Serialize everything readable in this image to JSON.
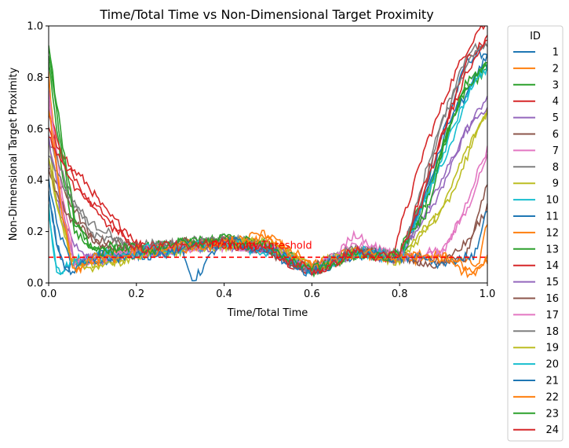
{
  "chart_data": {
    "type": "line",
    "title": "Time/Total Time vs Non-Dimensional Target Proximity",
    "xlabel": "Time/Total Time",
    "ylabel": "Non-Dimensional Target Proximity",
    "xlim": [
      0.0,
      1.0
    ],
    "ylim": [
      0.0,
      1.0
    ],
    "xticks": [
      "0.0",
      "0.2",
      "0.4",
      "0.6",
      "0.8",
      "1.0"
    ],
    "yticks": [
      "0.0",
      "0.2",
      "0.4",
      "0.6",
      "0.8",
      "1.0"
    ],
    "grid": false,
    "legend": {
      "title": "ID",
      "placement": "outside-right"
    },
    "threshold": {
      "y": 0.1,
      "label": "Proximity Threshold",
      "color": "#ff0000",
      "style": "dashed"
    },
    "series": [
      {
        "name": "1",
        "color": "#1f77b4",
        "x": [
          0,
          0.02,
          0.05,
          0.1,
          0.2,
          0.3,
          0.4,
          0.5,
          0.6,
          0.7,
          0.8,
          0.85,
          0.9,
          0.95,
          1.0
        ],
        "y": [
          0.4,
          0.2,
          0.08,
          0.1,
          0.12,
          0.14,
          0.16,
          0.13,
          0.05,
          0.12,
          0.1,
          0.3,
          0.6,
          0.85,
          0.9
        ]
      },
      {
        "name": "2",
        "color": "#ff7f0e",
        "x": [
          0,
          0.02,
          0.05,
          0.1,
          0.2,
          0.3,
          0.4,
          0.5,
          0.6,
          0.7,
          0.8,
          0.9,
          0.98,
          1.0
        ],
        "y": [
          0.8,
          0.4,
          0.1,
          0.08,
          0.12,
          0.14,
          0.15,
          0.17,
          0.06,
          0.12,
          0.1,
          0.1,
          0.06,
          0.25
        ]
      },
      {
        "name": "3",
        "color": "#2ca02c",
        "x": [
          0,
          0.03,
          0.06,
          0.1,
          0.2,
          0.3,
          0.4,
          0.5,
          0.6,
          0.7,
          0.8,
          0.85,
          0.9,
          0.95,
          1.0
        ],
        "y": [
          0.85,
          0.45,
          0.2,
          0.12,
          0.13,
          0.15,
          0.17,
          0.14,
          0.05,
          0.11,
          0.12,
          0.3,
          0.55,
          0.75,
          0.84
        ]
      },
      {
        "name": "4",
        "color": "#d62728",
        "x": [
          0,
          0.05,
          0.1,
          0.15,
          0.2,
          0.3,
          0.4,
          0.5,
          0.6,
          0.7,
          0.78,
          0.82,
          0.86,
          0.9,
          0.95,
          0.98,
          1.0
        ],
        "y": [
          0.65,
          0.45,
          0.35,
          0.25,
          0.15,
          0.14,
          0.16,
          0.13,
          0.04,
          0.12,
          0.1,
          0.3,
          0.55,
          0.7,
          0.9,
          1.0,
          1.0
        ]
      },
      {
        "name": "5",
        "color": "#9467bd",
        "x": [
          0,
          0.03,
          0.07,
          0.1,
          0.2,
          0.3,
          0.4,
          0.5,
          0.6,
          0.7,
          0.8,
          0.9,
          0.95,
          1.0
        ],
        "y": [
          0.5,
          0.25,
          0.1,
          0.09,
          0.12,
          0.13,
          0.15,
          0.14,
          0.05,
          0.12,
          0.1,
          0.4,
          0.6,
          0.72
        ]
      },
      {
        "name": "6",
        "color": "#8c564b",
        "x": [
          0,
          0.05,
          0.1,
          0.15,
          0.2,
          0.3,
          0.4,
          0.5,
          0.6,
          0.7,
          0.8,
          0.9,
          0.95,
          1.0
        ],
        "y": [
          0.45,
          0.3,
          0.18,
          0.15,
          0.13,
          0.15,
          0.16,
          0.13,
          0.05,
          0.12,
          0.1,
          0.08,
          0.1,
          0.38
        ]
      },
      {
        "name": "7",
        "color": "#e377c2",
        "x": [
          0,
          0.03,
          0.06,
          0.1,
          0.2,
          0.3,
          0.4,
          0.5,
          0.6,
          0.7,
          0.8,
          0.9,
          0.95,
          1.0
        ],
        "y": [
          0.75,
          0.35,
          0.08,
          0.1,
          0.12,
          0.14,
          0.15,
          0.14,
          0.05,
          0.16,
          0.1,
          0.12,
          0.3,
          0.52
        ]
      },
      {
        "name": "8",
        "color": "#7f7f7f",
        "x": [
          0,
          0.05,
          0.1,
          0.15,
          0.2,
          0.3,
          0.4,
          0.5,
          0.6,
          0.7,
          0.8,
          0.84,
          0.88,
          0.92,
          0.96,
          1.0
        ],
        "y": [
          0.55,
          0.35,
          0.22,
          0.18,
          0.14,
          0.15,
          0.17,
          0.14,
          0.05,
          0.13,
          0.1,
          0.3,
          0.55,
          0.75,
          0.9,
          0.93
        ]
      },
      {
        "name": "9",
        "color": "#bcbd22",
        "x": [
          0,
          0.02,
          0.05,
          0.1,
          0.2,
          0.3,
          0.4,
          0.5,
          0.6,
          0.7,
          0.8,
          0.9,
          0.95,
          1.0
        ],
        "y": [
          0.55,
          0.3,
          0.12,
          0.06,
          0.11,
          0.13,
          0.15,
          0.16,
          0.06,
          0.12,
          0.09,
          0.3,
          0.5,
          0.68
        ]
      },
      {
        "name": "10",
        "color": "#17becf",
        "x": [
          0,
          0.01,
          0.02,
          0.04,
          0.1,
          0.2,
          0.3,
          0.4,
          0.5,
          0.6,
          0.7,
          0.8,
          0.9,
          0.97,
          1.0
        ],
        "y": [
          0.3,
          0.15,
          0.03,
          0.08,
          0.1,
          0.12,
          0.14,
          0.15,
          0.13,
          0.05,
          0.12,
          0.1,
          0.5,
          0.8,
          0.85
        ]
      },
      {
        "name": "11",
        "color": "#1f77b4",
        "x": [
          0,
          0.02,
          0.04,
          0.1,
          0.2,
          0.3,
          0.33,
          0.4,
          0.5,
          0.6,
          0.7,
          0.8,
          0.86,
          0.92,
          1.0
        ],
        "y": [
          0.35,
          0.15,
          0.05,
          0.09,
          0.11,
          0.13,
          0.02,
          0.16,
          0.13,
          0.04,
          0.12,
          0.1,
          0.35,
          0.65,
          0.88
        ]
      },
      {
        "name": "12",
        "color": "#ff7f0e",
        "x": [
          0,
          0.03,
          0.06,
          0.1,
          0.2,
          0.3,
          0.4,
          0.5,
          0.6,
          0.7,
          0.8,
          0.9,
          0.97,
          1.0
        ],
        "y": [
          0.7,
          0.3,
          0.03,
          0.09,
          0.12,
          0.14,
          0.15,
          0.19,
          0.06,
          0.12,
          0.1,
          0.1,
          0.03,
          0.08
        ]
      },
      {
        "name": "13",
        "color": "#2ca02c",
        "x": [
          0,
          0.03,
          0.06,
          0.1,
          0.2,
          0.3,
          0.4,
          0.5,
          0.6,
          0.7,
          0.8,
          0.86,
          0.9,
          0.95,
          1.0
        ],
        "y": [
          0.92,
          0.55,
          0.25,
          0.14,
          0.13,
          0.15,
          0.17,
          0.14,
          0.05,
          0.11,
          0.11,
          0.3,
          0.55,
          0.78,
          0.84
        ]
      },
      {
        "name": "14",
        "color": "#d62728",
        "x": [
          0,
          0.05,
          0.1,
          0.15,
          0.2,
          0.3,
          0.4,
          0.5,
          0.6,
          0.7,
          0.8,
          0.85,
          0.9,
          0.95,
          1.0
        ],
        "y": [
          0.6,
          0.4,
          0.3,
          0.22,
          0.14,
          0.14,
          0.16,
          0.13,
          0.04,
          0.12,
          0.1,
          0.35,
          0.6,
          0.85,
          0.95
        ]
      },
      {
        "name": "15",
        "color": "#9467bd",
        "x": [
          0,
          0.03,
          0.06,
          0.1,
          0.2,
          0.3,
          0.4,
          0.5,
          0.6,
          0.7,
          0.8,
          0.9,
          0.95,
          1.0
        ],
        "y": [
          0.55,
          0.28,
          0.1,
          0.09,
          0.12,
          0.13,
          0.15,
          0.14,
          0.05,
          0.12,
          0.1,
          0.38,
          0.58,
          0.7
        ]
      },
      {
        "name": "16",
        "color": "#8c564b",
        "x": [
          0,
          0.05,
          0.1,
          0.2,
          0.3,
          0.4,
          0.5,
          0.6,
          0.7,
          0.8,
          0.9,
          0.95,
          1.0
        ],
        "y": [
          0.42,
          0.25,
          0.16,
          0.13,
          0.15,
          0.16,
          0.13,
          0.05,
          0.12,
          0.1,
          0.07,
          0.15,
          0.3
        ]
      },
      {
        "name": "17",
        "color": "#e377c2",
        "x": [
          0,
          0.03,
          0.06,
          0.1,
          0.2,
          0.3,
          0.4,
          0.5,
          0.6,
          0.7,
          0.8,
          0.9,
          0.95,
          1.0
        ],
        "y": [
          0.7,
          0.3,
          0.07,
          0.1,
          0.12,
          0.14,
          0.15,
          0.14,
          0.05,
          0.18,
          0.1,
          0.12,
          0.28,
          0.5
        ]
      },
      {
        "name": "18",
        "color": "#7f7f7f",
        "x": [
          0,
          0.05,
          0.1,
          0.15,
          0.2,
          0.3,
          0.4,
          0.5,
          0.6,
          0.7,
          0.8,
          0.84,
          0.88,
          0.92,
          0.96,
          1.0
        ],
        "y": [
          0.5,
          0.32,
          0.2,
          0.16,
          0.14,
          0.15,
          0.17,
          0.14,
          0.05,
          0.13,
          0.1,
          0.28,
          0.52,
          0.72,
          0.88,
          0.92
        ]
      },
      {
        "name": "19",
        "color": "#bcbd22",
        "x": [
          0,
          0.02,
          0.05,
          0.1,
          0.2,
          0.3,
          0.4,
          0.5,
          0.6,
          0.7,
          0.8,
          0.9,
          0.95,
          1.0
        ],
        "y": [
          0.5,
          0.28,
          0.1,
          0.05,
          0.11,
          0.13,
          0.15,
          0.16,
          0.06,
          0.12,
          0.09,
          0.28,
          0.48,
          0.66
        ]
      },
      {
        "name": "20",
        "color": "#17becf",
        "x": [
          0,
          0.01,
          0.025,
          0.05,
          0.1,
          0.2,
          0.3,
          0.4,
          0.5,
          0.6,
          0.7,
          0.8,
          0.9,
          0.97,
          1.0
        ],
        "y": [
          0.28,
          0.12,
          0.02,
          0.08,
          0.1,
          0.12,
          0.14,
          0.15,
          0.13,
          0.05,
          0.12,
          0.1,
          0.48,
          0.78,
          0.84
        ]
      },
      {
        "name": "21",
        "color": "#1f77b4",
        "x": [
          0,
          0.02,
          0.04,
          0.1,
          0.2,
          0.3,
          0.4,
          0.5,
          0.6,
          0.7,
          0.8,
          0.9,
          0.97,
          1.0
        ],
        "y": [
          0.33,
          0.14,
          0.05,
          0.09,
          0.11,
          0.13,
          0.16,
          0.13,
          0.04,
          0.12,
          0.1,
          0.08,
          0.1,
          0.3
        ]
      },
      {
        "name": "22",
        "color": "#ff7f0e",
        "x": [
          0,
          0.03,
          0.06,
          0.1,
          0.2,
          0.3,
          0.4,
          0.5,
          0.6,
          0.7,
          0.8,
          0.9,
          0.97,
          1.0
        ],
        "y": [
          0.68,
          0.28,
          0.04,
          0.09,
          0.12,
          0.14,
          0.15,
          0.18,
          0.06,
          0.12,
          0.1,
          0.1,
          0.04,
          0.1
        ]
      },
      {
        "name": "23",
        "color": "#2ca02c",
        "x": [
          0,
          0.03,
          0.06,
          0.1,
          0.2,
          0.3,
          0.4,
          0.5,
          0.6,
          0.7,
          0.8,
          0.86,
          0.9,
          0.95,
          1.0
        ],
        "y": [
          0.9,
          0.52,
          0.22,
          0.13,
          0.13,
          0.15,
          0.17,
          0.14,
          0.05,
          0.11,
          0.11,
          0.28,
          0.52,
          0.76,
          0.86
        ]
      },
      {
        "name": "24",
        "color": "#d62728",
        "x": [
          0,
          0.05,
          0.1,
          0.15,
          0.2,
          0.3,
          0.4,
          0.5,
          0.6,
          0.7,
          0.8,
          0.85,
          0.9,
          0.95,
          1.0
        ],
        "y": [
          0.58,
          0.42,
          0.3,
          0.2,
          0.14,
          0.14,
          0.16,
          0.13,
          0.04,
          0.12,
          0.1,
          0.32,
          0.58,
          0.82,
          0.96
        ]
      }
    ]
  }
}
